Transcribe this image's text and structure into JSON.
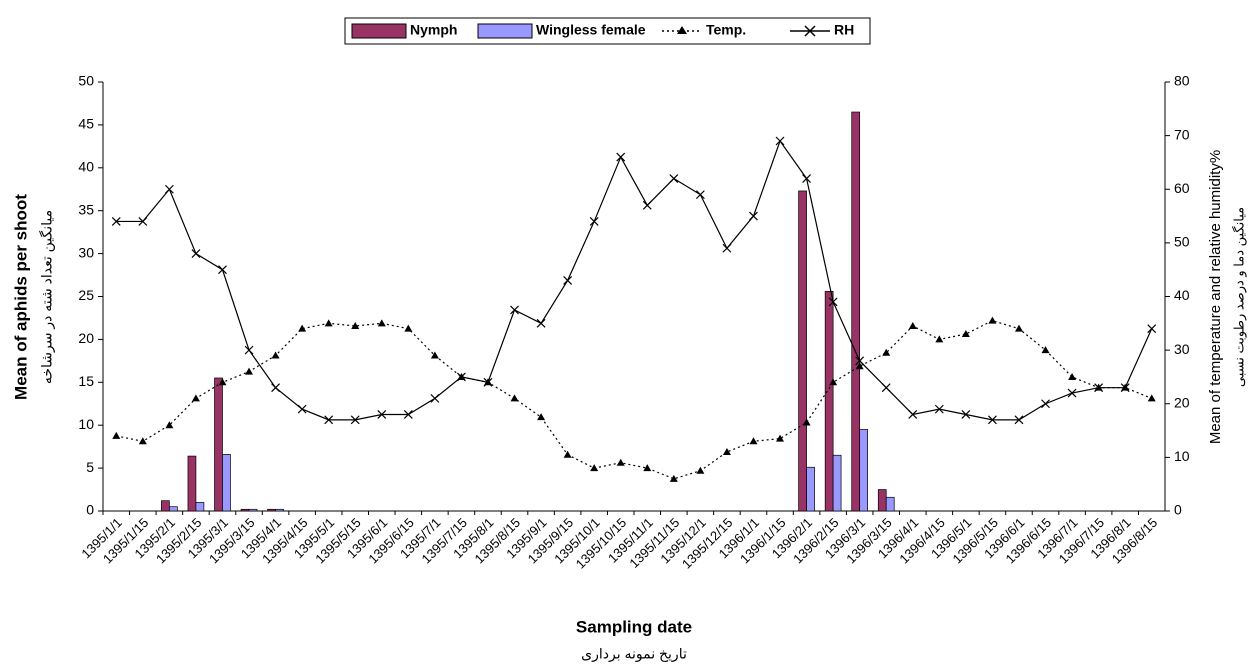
{
  "chart_data": {
    "type": "bar",
    "categories": [
      "1395/1/1",
      "1395/1/15",
      "1395/2/1",
      "1395/2/15",
      "1395/3/1",
      "1395/3/15",
      "1395/4/1",
      "1395/4/15",
      "1395/5/1",
      "1395/5/15",
      "1395/6/1",
      "1395/6/15",
      "1395/7/1",
      "1395/7/15",
      "1395/8/1",
      "1395/8/15",
      "1395/9/1",
      "1395/9/15",
      "1395/10/1",
      "1395/10/15",
      "1395/11/1",
      "1395/11/15",
      "1395/12/1",
      "1395/12/15",
      "1396/1/1",
      "1396/1/15",
      "1396/2/1",
      "1396/2/15",
      "1396/3/1",
      "1396/3/15",
      "1396/4/1",
      "1396/4/15",
      "1396/5/1",
      "1396/5/15",
      "1396/6/1",
      "1396/6/15",
      "1396/7/1",
      "1396/7/15",
      "1396/8/1",
      "1396/8/15"
    ],
    "series": [
      {
        "name": "Nymph",
        "type": "bar",
        "color": "#993366",
        "values": [
          0,
          0,
          1.2,
          6.4,
          15.5,
          0.2,
          0.2,
          0,
          0,
          0,
          0,
          0,
          0,
          0,
          0,
          0,
          0,
          0,
          0,
          0,
          0,
          0,
          0,
          0,
          0,
          0,
          37.3,
          25.6,
          46.5,
          2.5,
          0,
          0,
          0,
          0,
          0,
          0,
          0,
          0,
          0,
          0
        ]
      },
      {
        "name": "Wingless female",
        "type": "bar",
        "color": "#9999ff",
        "values": [
          0,
          0,
          0.5,
          1.0,
          6.6,
          0.2,
          0.2,
          0,
          0,
          0,
          0,
          0,
          0,
          0,
          0,
          0,
          0,
          0,
          0,
          0,
          0,
          0,
          0,
          0,
          0,
          0,
          5.1,
          6.5,
          9.5,
          1.6,
          0,
          0,
          0,
          0,
          0,
          0,
          0,
          0,
          0,
          0
        ]
      },
      {
        "name": "Temp.",
        "type": "line",
        "axis": "y2",
        "color": "#000000",
        "marker": "triangle",
        "dash": "dotted",
        "values": [
          14,
          13,
          16,
          21,
          24,
          26,
          29,
          34,
          35,
          34.5,
          35,
          34,
          29,
          25,
          24,
          21,
          17.5,
          10.5,
          8,
          9,
          8,
          6,
          7.5,
          11,
          13,
          13.5,
          16.5,
          24,
          27,
          29.5,
          34.5,
          32,
          33,
          35.5,
          34,
          30,
          25,
          23,
          23,
          21
        ]
      },
      {
        "name": "RH",
        "type": "line",
        "axis": "y2",
        "color": "#000000",
        "marker": "x",
        "dash": "solid",
        "values": [
          54,
          54,
          60,
          48,
          45,
          30,
          23,
          19,
          17,
          17,
          18,
          18,
          21,
          25,
          24,
          37.5,
          35,
          43,
          54,
          66,
          57,
          62,
          59,
          49,
          55,
          69,
          62,
          39,
          28,
          23,
          18,
          19,
          18,
          17,
          17,
          20,
          22,
          23,
          23,
          34
        ]
      }
    ],
    "ylim": [
      0,
      50
    ],
    "yticks": [
      0,
      5,
      10,
      15,
      20,
      25,
      30,
      35,
      40,
      45,
      50
    ],
    "y2lim": [
      0,
      80
    ],
    "y2ticks": [
      0,
      10,
      20,
      30,
      40,
      50,
      60,
      70,
      80
    ],
    "y_label": "Mean of aphids per shoot",
    "y_label_2": "میانگین تعداد شته در سرشاخه",
    "y2_label": "Mean of temperature and relative humidity%",
    "y2_label_2": "میانگین دما و درصد رطوبت نسبی",
    "x_label": "Sampling date",
    "x_label_2": "تاریخ نمونه برداری",
    "legend": "top"
  }
}
